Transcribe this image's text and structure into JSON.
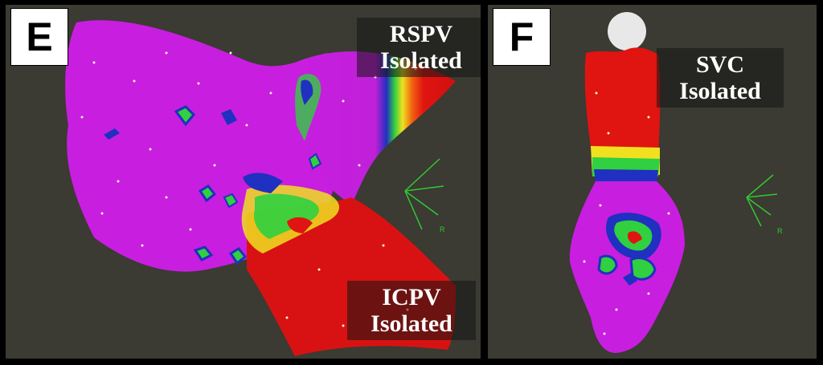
{
  "panels": [
    {
      "letter": "E",
      "labels": [
        {
          "line1": "RSPV",
          "line2": "Isolated"
        },
        {
          "line1": "ICPV",
          "line2": "Isolated"
        }
      ],
      "axis_marker": "R"
    },
    {
      "letter": "F",
      "labels": [
        {
          "line1": "SVC",
          "line2": "Isolated"
        }
      ],
      "axis_marker": "R"
    }
  ],
  "colors": {
    "background": "#3b3a33",
    "tissue_magenta": "#c81ee0",
    "tissue_red": "#e01410",
    "border_yellow": "#f0e020",
    "border_green": "#30d040",
    "border_blue": "#2030c0",
    "axis_green": "#32c832"
  }
}
